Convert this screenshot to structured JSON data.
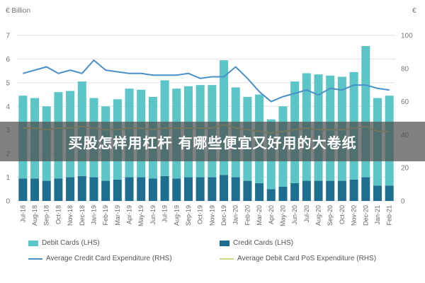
{
  "banner": {
    "text": "买股怎样用杠杆 有哪些便宜又好用的大卷纸"
  },
  "chart_data": {
    "type": "bar",
    "left_axis_label": "€ Billion",
    "right_axis_label": "€",
    "ylim_left": [
      0,
      7
    ],
    "ylim_right": [
      0,
      100
    ],
    "yticks_left": [
      "0",
      "1",
      "2",
      "3",
      "4",
      "5",
      "6",
      "7"
    ],
    "yticks_right": [
      "0",
      "20",
      "40",
      "60",
      "80",
      "100"
    ],
    "categories": [
      "Jul-18",
      "Aug-18",
      "Sep-18",
      "Oct-18",
      "Nov-18",
      "Dec-18",
      "Jan-19",
      "Feb-19",
      "Mar-19",
      "Apr-19",
      "May-19",
      "Jun-19",
      "Jul-19",
      "Aug-19",
      "Sep-19",
      "Oct-19",
      "Nov-19",
      "Dec-19",
      "Jan-20",
      "Feb-20",
      "Mar-20",
      "Apr-20",
      "May-20",
      "Jun-20",
      "Jul-20",
      "Aug-20",
      "Sep-20",
      "Oct-20",
      "Nov-20",
      "Dec-20",
      "Jan-21",
      "Feb-21"
    ],
    "x_tick_labels": [
      "Jul-18",
      "Aug-18",
      "Sep-18",
      "Oct-18",
      "Nov-18",
      "Dec-18",
      "Jan-19",
      "Feb-19",
      "Mar-19",
      "Apr-19",
      "May-19",
      "Jun-19",
      "Jul-19",
      "Aug-19",
      "Sep-19",
      "Oct-19",
      "Nov-19",
      "Dec-19",
      "Jan-20",
      "Feb-20",
      "Mar-20",
      "Apr-20",
      "May-20",
      "Jun-20",
      "Jul-20",
      "Aug-20",
      "Sep-20",
      "Oct-20",
      "Nov-20",
      "Dec-20",
      "Jan-21",
      "Feb-21"
    ],
    "grid": true,
    "series": [
      {
        "name": "Debit Cards (LHS)",
        "kind": "bar",
        "axis": "left",
        "color": "#5cc5c7",
        "values": [
          4.45,
          4.35,
          4.0,
          4.6,
          4.65,
          5.05,
          4.35,
          4.0,
          4.3,
          4.75,
          4.7,
          4.4,
          5.1,
          4.75,
          4.85,
          4.9,
          4.9,
          5.95,
          4.8,
          4.4,
          4.5,
          3.45,
          4.0,
          5.05,
          5.4,
          5.35,
          5.3,
          5.25,
          5.45,
          6.55,
          4.35,
          4.45
        ]
      },
      {
        "name": "Credit Cards (LHS)",
        "kind": "bar",
        "axis": "left",
        "color": "#1d6e8f",
        "values": [
          0.95,
          0.95,
          0.85,
          0.95,
          1.0,
          1.05,
          1.0,
          0.85,
          0.9,
          1.0,
          1.0,
          0.95,
          1.05,
          0.95,
          1.0,
          1.0,
          1.0,
          1.1,
          1.0,
          0.85,
          0.75,
          0.5,
          0.6,
          0.75,
          0.85,
          0.85,
          0.85,
          0.85,
          0.9,
          1.0,
          0.65,
          0.65
        ]
      },
      {
        "name": "Average Credit Card Expenditure (RHS)",
        "kind": "line",
        "axis": "right",
        "color": "#4a90c8",
        "values": [
          77,
          79,
          81,
          77,
          79,
          77,
          85,
          79,
          78,
          77,
          77,
          76,
          76,
          76,
          77,
          74,
          75,
          75,
          81,
          74,
          66,
          60,
          63,
          65,
          67,
          64,
          68,
          67,
          70,
          70,
          68,
          67
        ]
      },
      {
        "name": "Average Debit Card PoS Expenditure (RHS)",
        "kind": "line",
        "axis": "right",
        "color": "#c9d98a",
        "values": [
          44,
          44,
          43,
          44,
          44,
          45,
          44,
          43,
          43,
          44,
          44,
          43,
          44,
          44,
          44,
          44,
          44,
          46,
          44,
          43,
          42,
          41,
          42,
          43,
          44,
          43,
          43,
          43,
          44,
          45,
          42,
          42
        ]
      }
    ]
  }
}
